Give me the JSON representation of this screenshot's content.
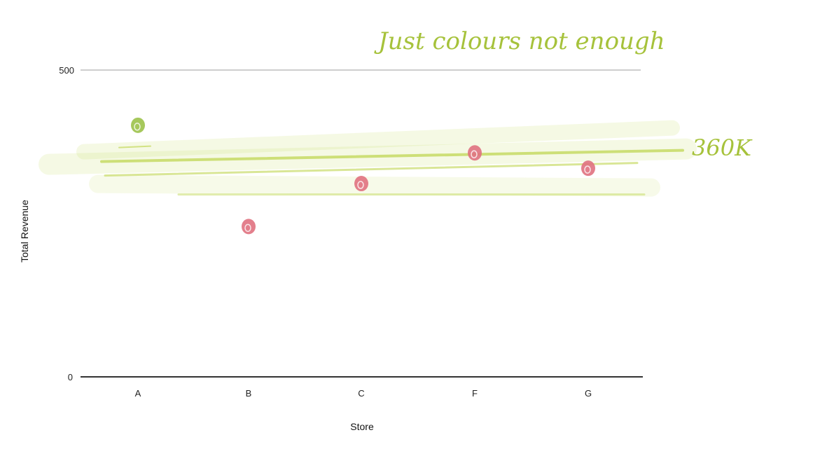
{
  "chart_data": {
    "type": "scatter",
    "xlabel": "Store",
    "ylabel": "Total Revenue",
    "categories": [
      "A",
      "B",
      "C",
      "F",
      "G"
    ],
    "values": [
      410,
      245,
      315,
      365,
      340
    ],
    "point_colors": [
      "#9cc24a",
      "#e0717f",
      "#e0717f",
      "#e0717f",
      "#e0717f"
    ],
    "y_ticks": [
      "0",
      "500"
    ],
    "ylim": [
      0,
      500
    ],
    "grid": false,
    "annotations": {
      "note": "Just colours not enough",
      "threshold_label": "360K",
      "threshold_value": 360,
      "highlight_color": "#c9dc6a",
      "annotation_text_color": "#a6c23b"
    }
  }
}
